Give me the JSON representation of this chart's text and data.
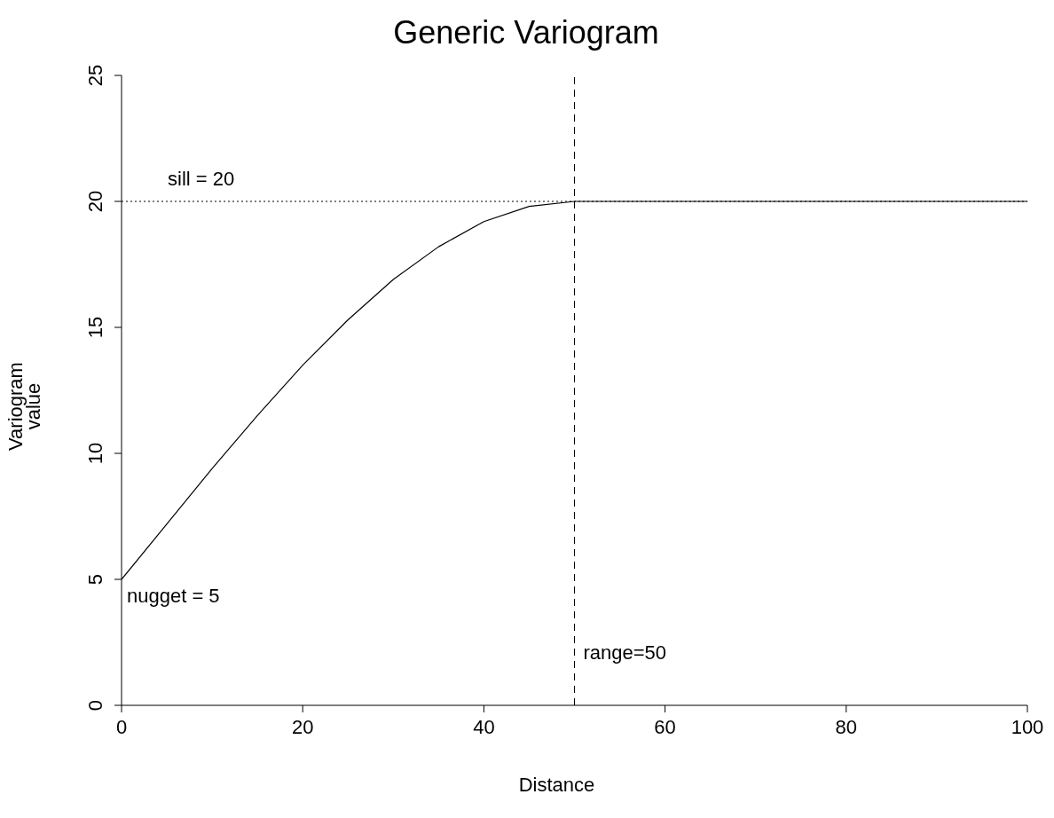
{
  "chart_data": {
    "type": "line",
    "title": "Generic Variogram",
    "xlabel": "Distance",
    "ylabel": "Variogram\nvalue",
    "x": [
      0,
      5,
      10,
      15,
      20,
      25,
      30,
      35,
      40,
      45,
      50,
      100
    ],
    "series": [
      {
        "color": "#000000",
        "values": [
          5,
          7.2,
          9.4,
          11.5,
          13.5,
          15.3,
          16.9,
          18.2,
          19.2,
          19.8,
          20,
          20
        ]
      }
    ],
    "xlim": [
      0,
      100
    ],
    "xticks": [
      0,
      20,
      40,
      60,
      80,
      100
    ],
    "ylim": [
      0,
      25
    ],
    "yticks": [
      0,
      5,
      10,
      15,
      20,
      25
    ],
    "ref_lines": [
      {
        "axis": "y",
        "value": 20,
        "label": "sill = 20",
        "line_style": "dotted",
        "color": "#000000"
      },
      {
        "axis": "x",
        "value": 50,
        "label": "range=50",
        "line_style": "dashed",
        "color": "#000000"
      }
    ],
    "annotations": [
      {
        "text": "nugget = 5",
        "x": 0,
        "y": 5
      }
    ],
    "grid": false,
    "legend": false,
    "marker": "none",
    "line_style": "solid"
  }
}
